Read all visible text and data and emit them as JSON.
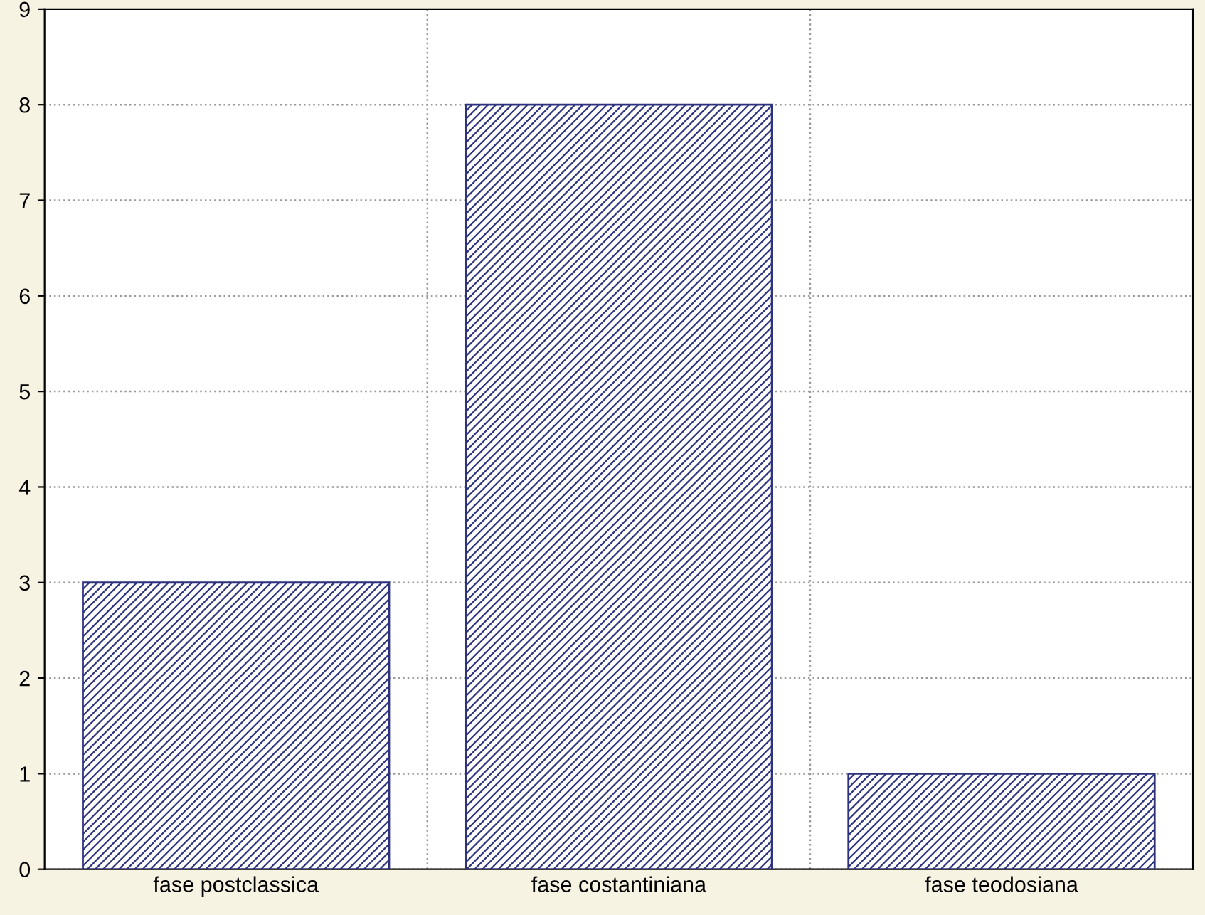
{
  "chart_data": {
    "type": "bar",
    "categories": [
      "fase postclassica",
      "fase costantiniana",
      "fase teodosiana"
    ],
    "values": [
      3,
      8,
      1
    ],
    "color": "#2e3380",
    "ylim": [
      0,
      9
    ],
    "yticks": [
      0,
      1,
      2,
      3,
      4,
      5,
      6,
      7,
      8,
      9
    ],
    "grid": true
  }
}
